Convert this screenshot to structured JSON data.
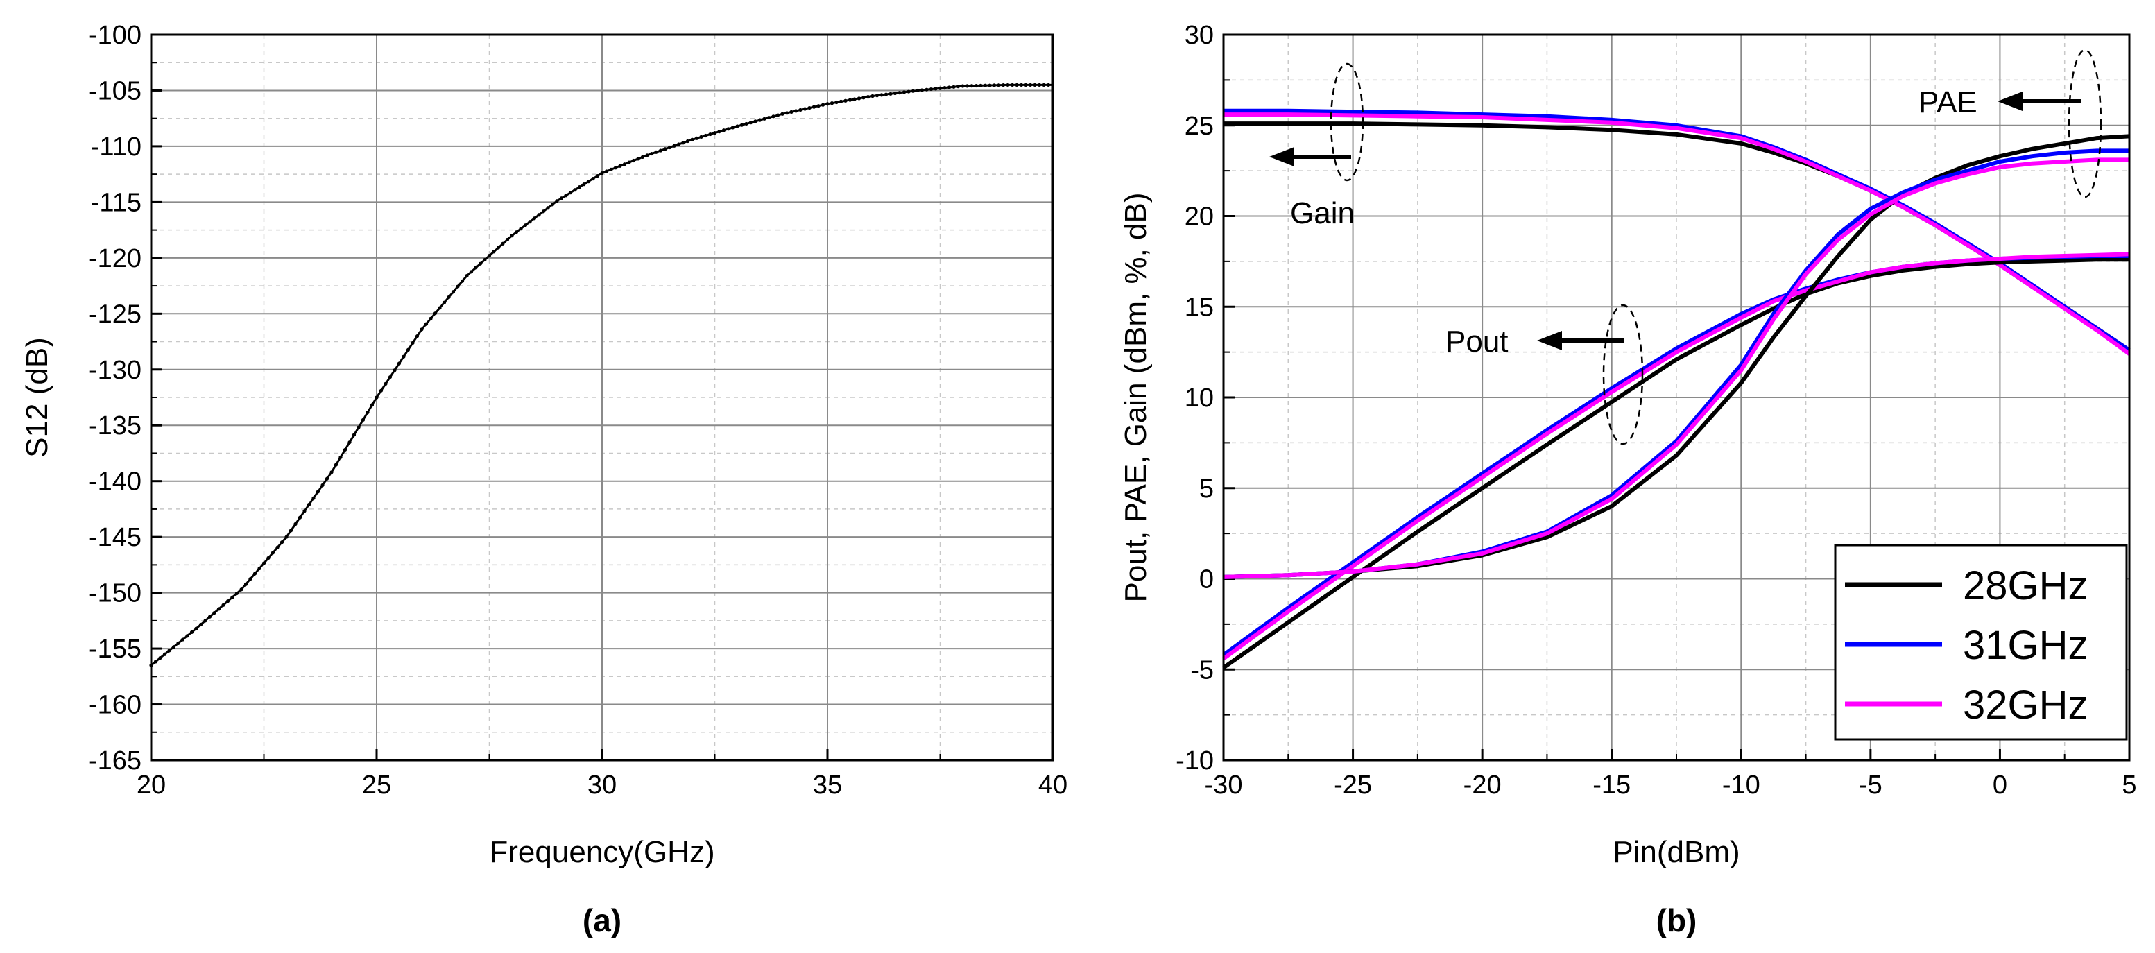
{
  "chart_data": [
    {
      "id": "a",
      "type": "line",
      "caption": "(a)",
      "xlabel": "Frequency(GHz)",
      "ylabel": "S12 (dB)",
      "xlim": [
        20,
        40
      ],
      "ylim": [
        -165,
        -100
      ],
      "xticks": [
        "20",
        "25",
        "30",
        "35",
        "40"
      ],
      "xtick_values": [
        20,
        25,
        30,
        35,
        40
      ],
      "yticks": [
        "-100",
        "-105",
        "-110",
        "-115",
        "-120",
        "-125",
        "-130",
        "-135",
        "-140",
        "-145",
        "-150",
        "-155",
        "-160",
        "-165"
      ],
      "ytick_values": [
        -100,
        -105,
        -110,
        -115,
        -120,
        -125,
        -130,
        -135,
        -140,
        -145,
        -150,
        -155,
        -160,
        -165
      ],
      "grid": true,
      "series": [
        {
          "name": "S12",
          "color": "#000000",
          "marker": "dot",
          "x": [
            20,
            21,
            22,
            23,
            24,
            25,
            26,
            27,
            28,
            29,
            30,
            31,
            32,
            33,
            34,
            35,
            36,
            37,
            38,
            39,
            40
          ],
          "y": [
            -156.5,
            -153.2,
            -149.7,
            -145.0,
            -139.2,
            -132.5,
            -126.4,
            -121.6,
            -118.0,
            -114.9,
            -112.4,
            -110.8,
            -109.4,
            -108.2,
            -107.1,
            -106.2,
            -105.5,
            -105.0,
            -104.6,
            -104.5,
            -104.5
          ]
        }
      ]
    },
    {
      "id": "b",
      "type": "line",
      "caption": "(b)",
      "xlabel": "Pin(dBm)",
      "ylabel": "Pout, PAE, Gain (dBm, %, dB)",
      "xlim": [
        -30,
        5
      ],
      "ylim": [
        -10,
        30
      ],
      "xticks": [
        "-30",
        "-25",
        "-20",
        "-15",
        "-10",
        "-5",
        "0",
        "5"
      ],
      "xtick_values": [
        -30,
        -25,
        -20,
        -15,
        -10,
        -5,
        0,
        5
      ],
      "yticks": [
        "-10",
        "-5",
        "0",
        "5",
        "10",
        "15",
        "20",
        "25",
        "30"
      ],
      "ytick_values": [
        -10,
        -5,
        0,
        5,
        10,
        15,
        20,
        25,
        30
      ],
      "grid": true,
      "legend": {
        "position": "bottom-right",
        "entries": [
          "28GHz",
          "31GHz",
          "32GHz"
        ]
      },
      "annotations": [
        "Gain",
        "PAE",
        "Pout"
      ],
      "x": [
        -30,
        -27.5,
        -25,
        -22.5,
        -20,
        -17.5,
        -15,
        -12.5,
        -10,
        -8.75,
        -7.5,
        -6.25,
        -5,
        -3.75,
        -2.5,
        -1.25,
        0,
        1.25,
        2.5,
        3.75,
        5
      ],
      "series": [
        {
          "name": "28GHz Gain",
          "group": "Gain",
          "color": "#000000",
          "y": [
            25.1,
            25.1,
            25.1,
            25.05,
            25.0,
            24.9,
            24.75,
            24.5,
            24.0,
            23.5,
            22.9,
            22.2,
            21.4,
            20.5,
            19.5,
            18.4,
            17.3,
            16.1,
            15.0,
            13.8,
            12.6
          ]
        },
        {
          "name": "31GHz Gain",
          "group": "Gain",
          "color": "#0000ff",
          "y": [
            25.8,
            25.8,
            25.75,
            25.7,
            25.6,
            25.5,
            25.3,
            25.0,
            24.4,
            23.8,
            23.1,
            22.3,
            21.5,
            20.6,
            19.6,
            18.5,
            17.4,
            16.2,
            15.0,
            13.8,
            12.6
          ]
        },
        {
          "name": "32GHz Gain",
          "group": "Gain",
          "color": "#ff00ff",
          "y": [
            25.6,
            25.6,
            25.55,
            25.5,
            25.45,
            25.3,
            25.15,
            24.85,
            24.3,
            23.7,
            23.0,
            22.2,
            21.4,
            20.5,
            19.5,
            18.4,
            17.3,
            16.1,
            14.9,
            13.7,
            12.4
          ]
        },
        {
          "name": "28GHz Pout",
          "group": "Pout",
          "color": "#000000",
          "y": [
            -4.9,
            -2.4,
            0.1,
            2.6,
            5.0,
            7.4,
            9.75,
            12.1,
            14.0,
            14.9,
            15.7,
            16.3,
            16.7,
            17.0,
            17.2,
            17.35,
            17.45,
            17.5,
            17.55,
            17.6,
            17.6
          ]
        },
        {
          "name": "31GHz Pout",
          "group": "Pout",
          "color": "#0000ff",
          "y": [
            -4.2,
            -1.6,
            0.9,
            3.4,
            5.8,
            8.2,
            10.5,
            12.7,
            14.6,
            15.4,
            16.0,
            16.5,
            16.9,
            17.2,
            17.4,
            17.55,
            17.65,
            17.7,
            17.75,
            17.8,
            17.8
          ]
        },
        {
          "name": "32GHz Pout",
          "group": "Pout",
          "color": "#ff00ff",
          "y": [
            -4.4,
            -1.8,
            0.7,
            3.2,
            5.6,
            8.0,
            10.3,
            12.5,
            14.4,
            15.3,
            15.9,
            16.4,
            16.9,
            17.2,
            17.4,
            17.55,
            17.65,
            17.75,
            17.8,
            17.85,
            17.9
          ]
        },
        {
          "name": "28GHz PAE",
          "group": "PAE",
          "color": "#000000",
          "y": [
            0.1,
            0.2,
            0.4,
            0.7,
            1.3,
            2.3,
            4.0,
            6.8,
            10.8,
            13.3,
            15.6,
            17.8,
            19.8,
            21.2,
            22.1,
            22.8,
            23.3,
            23.7,
            24.0,
            24.3,
            24.4
          ]
        },
        {
          "name": "31GHz PAE",
          "group": "PAE",
          "color": "#0000ff",
          "y": [
            0.1,
            0.2,
            0.4,
            0.8,
            1.5,
            2.6,
            4.6,
            7.6,
            11.8,
            14.6,
            17.0,
            19.0,
            20.4,
            21.3,
            22.0,
            22.5,
            23.0,
            23.3,
            23.5,
            23.6,
            23.6
          ]
        },
        {
          "name": "32GHz PAE",
          "group": "PAE",
          "color": "#ff00ff",
          "y": [
            0.1,
            0.2,
            0.4,
            0.8,
            1.4,
            2.5,
            4.4,
            7.4,
            11.5,
            14.3,
            16.8,
            18.7,
            20.1,
            21.1,
            21.8,
            22.3,
            22.7,
            22.9,
            23.0,
            23.1,
            23.1
          ]
        }
      ]
    }
  ]
}
